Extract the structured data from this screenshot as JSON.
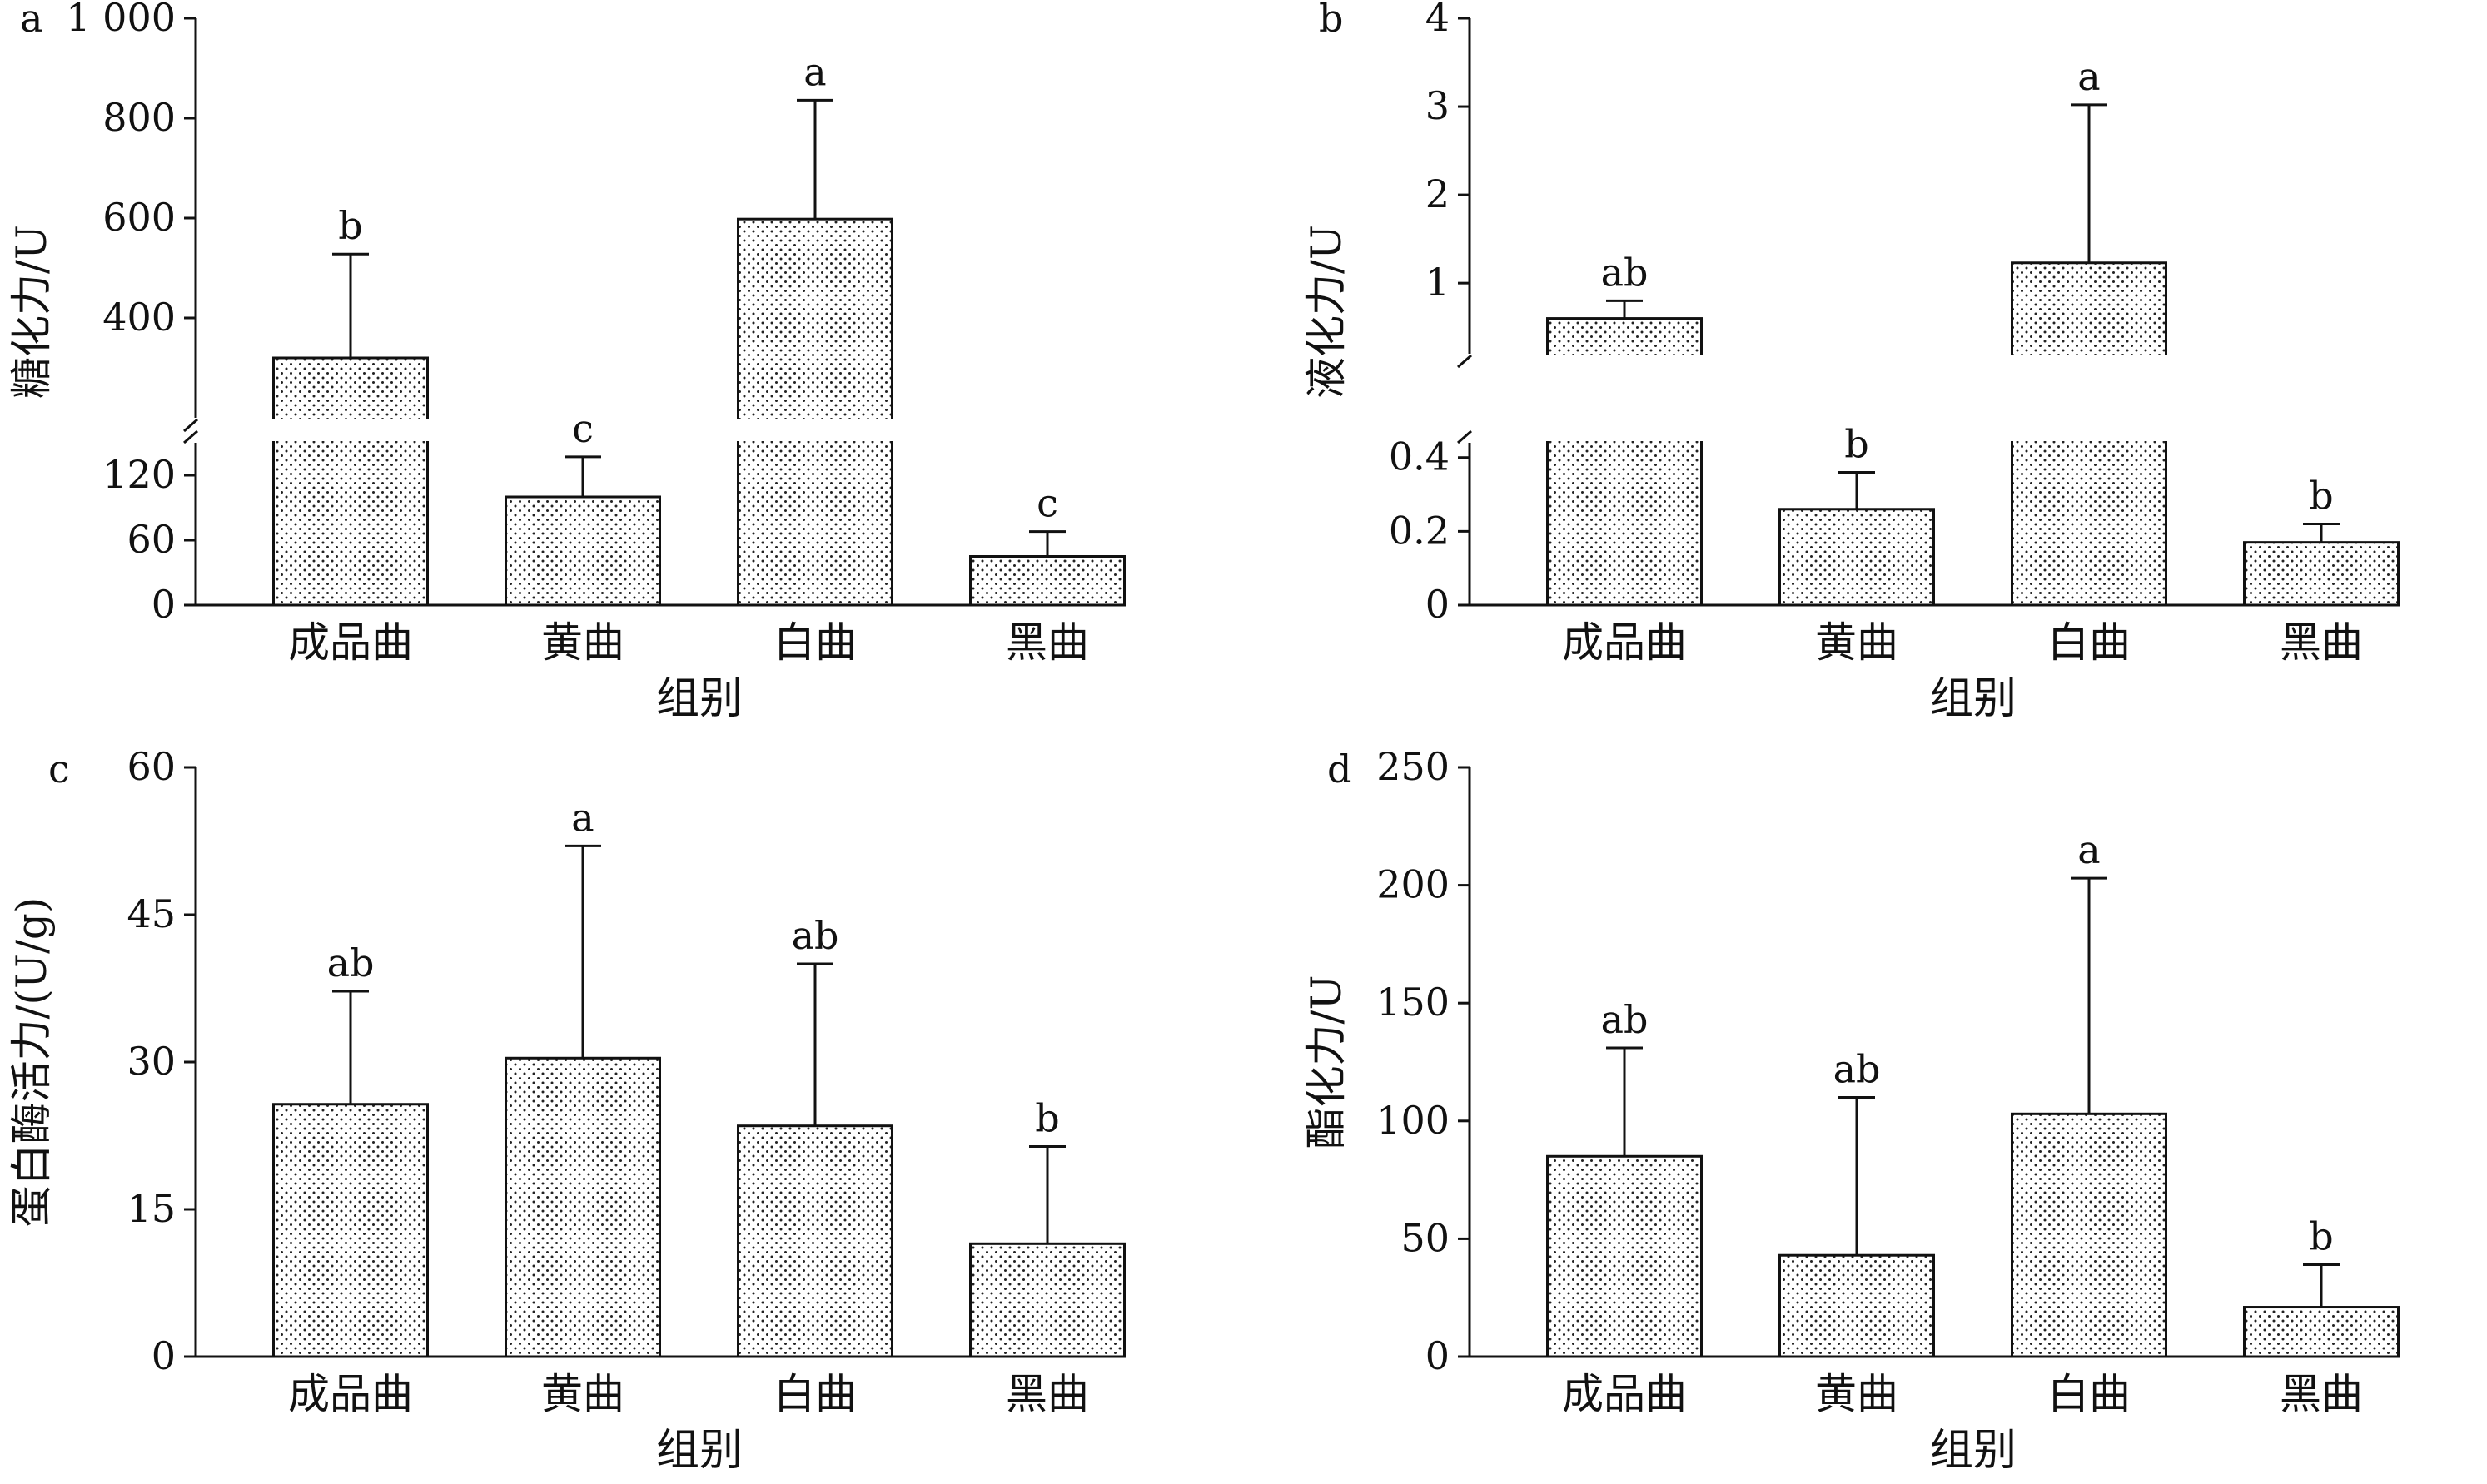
{
  "chart_data": [
    {
      "panel": "a",
      "type": "bar",
      "categories": [
        "成品曲",
        "黄曲",
        "白曲",
        "黑曲"
      ],
      "values": [
        320,
        100,
        598,
        45
      ],
      "error": [
        208,
        37,
        238,
        23
      ],
      "letters": [
        "b",
        "c",
        "a",
        "c"
      ],
      "xlabel": "组别",
      "ylabel": "糖化力/U",
      "axis_break": true,
      "lower_range": [
        0,
        150
      ],
      "upper_range": [
        200,
        1000
      ],
      "lower_ticks": [
        "0",
        "60",
        "120"
      ],
      "upper_ticks": [
        "400",
        "600",
        "800",
        "1 000"
      ],
      "upper_tick_values": [
        400,
        600,
        800,
        1000
      ]
    },
    {
      "panel": "b",
      "type": "bar",
      "categories": [
        "成品曲",
        "黄曲",
        "白曲",
        "黑曲"
      ],
      "values": [
        0.6,
        0.26,
        1.23,
        0.17
      ],
      "error": [
        0.2,
        0.1,
        1.79,
        0.05
      ],
      "letters": [
        "ab",
        "b",
        "a",
        "b"
      ],
      "xlabel": "组别",
      "ylabel": "液化力/U",
      "axis_break": true,
      "lower_range": [
        0,
        0.44
      ],
      "upper_range": [
        0.2,
        4
      ],
      "lower_ticks": [
        "0",
        "0.2",
        "0.4"
      ],
      "upper_ticks": [
        "1",
        "2",
        "3",
        "4"
      ],
      "upper_tick_values": [
        1,
        2,
        3,
        4
      ]
    },
    {
      "panel": "c",
      "type": "bar",
      "categories": [
        "成品曲",
        "黄曲",
        "白曲",
        "黑曲"
      ],
      "values": [
        25.7,
        30.4,
        23.5,
        11.5
      ],
      "error": [
        11.5,
        21.6,
        16.5,
        9.9
      ],
      "letters": [
        "ab",
        "a",
        "ab",
        "b"
      ],
      "xlabel": "组别",
      "ylabel": "蛋白酶活力/(U/g)",
      "ylim": [
        0,
        60
      ],
      "ticks": [
        "0",
        "15",
        "30",
        "45",
        "60"
      ],
      "tick_values": [
        0,
        15,
        30,
        45,
        60
      ]
    },
    {
      "panel": "d",
      "type": "bar",
      "categories": [
        "成品曲",
        "黄曲",
        "白曲",
        "黑曲"
      ],
      "values": [
        85,
        43,
        103,
        21
      ],
      "error": [
        46,
        67,
        100,
        18
      ],
      "letters": [
        "ab",
        "ab",
        "a",
        "b"
      ],
      "xlabel": "组别",
      "ylabel": "酯化力/U",
      "ylim": [
        0,
        250
      ],
      "ticks": [
        "0",
        "50",
        "100",
        "150",
        "200",
        "250"
      ],
      "tick_values": [
        0,
        50,
        100,
        150,
        200,
        250
      ]
    }
  ]
}
